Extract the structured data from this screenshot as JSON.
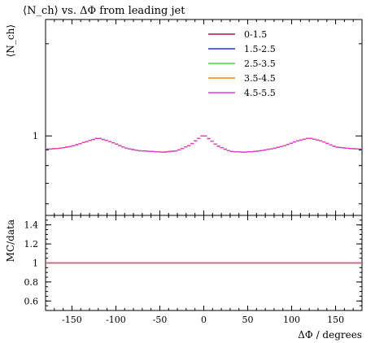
{
  "chart_data": {
    "type": "line",
    "title": "⟨N_ch⟩ vs. ΔΦ from leading jet",
    "ylabel_main": "⟨N_ch⟩",
    "ylabel_ratio": "MC/data",
    "xlabel": "ΔΦ / degrees",
    "xlim": [
      -180,
      180
    ],
    "ylim_main_log": [
      0.55,
      2.4
    ],
    "ylim_ratio": [
      0.5,
      1.5
    ],
    "x_ticks": [
      -150,
      -100,
      -50,
      0,
      50,
      100,
      150
    ],
    "x_tick_labels": [
      "-150",
      "-100",
      "-50",
      "0",
      "50",
      "100",
      "150"
    ],
    "y_main_ticks": [
      1
    ],
    "y_main_tick_labels": [
      "1"
    ],
    "y_ratio_ticks": [
      0.6,
      0.8,
      1.0,
      1.2,
      1.4
    ],
    "y_ratio_tick_labels": [
      "0.6",
      "0.8",
      "1",
      "1.2",
      "1.4"
    ],
    "legend_position": "top-right",
    "series": [
      {
        "name": "0-1.5",
        "color": "#b0153a"
      },
      {
        "name": "1.5-2.5",
        "color": "#2233ee"
      },
      {
        "name": "2.5-3.5",
        "color": "#44dd44"
      },
      {
        "name": "3.5-4.5",
        "color": "#ee8811"
      },
      {
        "name": "4.5-5.5",
        "color": "#ee33dd"
      }
    ],
    "profile_bin_width_deg": 3.75,
    "profile_x": [
      -180,
      -165,
      -150,
      -135,
      -120,
      -105,
      -90,
      -75,
      -60,
      -45,
      -30,
      -15,
      0,
      15,
      30,
      45,
      60,
      75,
      90,
      105,
      120,
      135,
      150,
      165,
      180
    ],
    "profile_y": [
      0.905,
      0.91,
      0.925,
      0.955,
      0.985,
      0.955,
      0.915,
      0.895,
      0.89,
      0.885,
      0.895,
      0.935,
      1.01,
      0.93,
      0.89,
      0.885,
      0.89,
      0.905,
      0.925,
      0.96,
      0.985,
      0.96,
      0.92,
      0.91,
      0.905
    ],
    "ratio_value": 1.0
  }
}
